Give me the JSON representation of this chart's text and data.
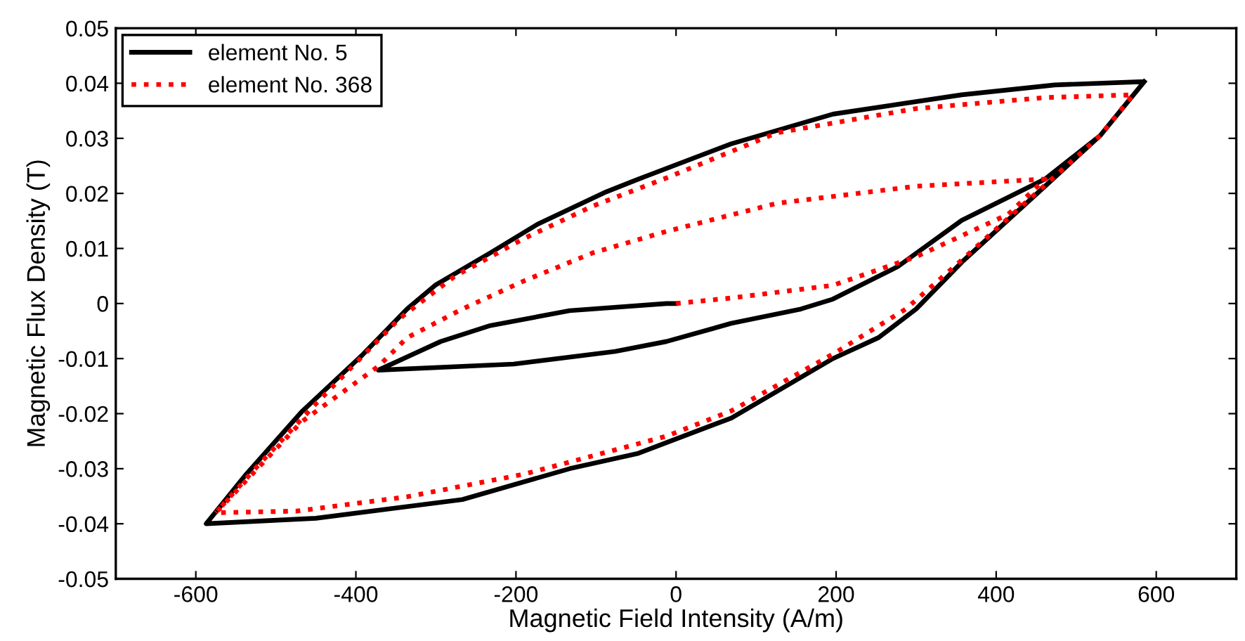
{
  "chart_data": {
    "type": "line",
    "xlabel": "Magnetic Field Intensity (A/m)",
    "ylabel": "Magnetic Flux Density (T)",
    "xlim": [
      -700,
      700
    ],
    "ylim": [
      -0.05,
      0.05
    ],
    "xticks": [
      -600,
      -400,
      -200,
      0,
      200,
      400,
      600
    ],
    "yticks": [
      -0.05,
      -0.04,
      -0.03,
      -0.02,
      -0.01,
      0,
      0.01,
      0.02,
      0.03,
      0.04,
      0.05
    ],
    "grid": false,
    "legend": "top left",
    "marker": "none",
    "series": [
      {
        "name": "element No. 5",
        "color": "#000000",
        "line_style": "solid",
        "x": [
          0,
          -12,
          -133,
          -232,
          -294,
          -372,
          -203,
          -76,
          -12,
          69,
          156,
          196,
          277,
          357,
          461,
          530,
          585,
          473,
          357,
          196,
          69,
          -47,
          -87,
          -173,
          -232,
          -301,
          -336,
          -393,
          -468,
          -537,
          -587,
          -450,
          -267,
          -133,
          -47,
          69,
          196,
          253,
          300,
          357,
          461,
          530,
          585
        ],
        "values": [
          0,
          0,
          -0.0013,
          -0.004,
          -0.0069,
          -0.0121,
          -0.011,
          -0.0087,
          -0.0069,
          -0.0036,
          -0.001,
          0.0008,
          0.0067,
          0.0151,
          0.0226,
          0.0305,
          0.0403,
          0.0397,
          0.0379,
          0.0344,
          0.029,
          0.0226,
          0.0203,
          0.0144,
          0.0092,
          0.0033,
          -0.001,
          -0.0095,
          -0.0197,
          -0.031,
          -0.04,
          -0.039,
          -0.0356,
          -0.03,
          -0.0272,
          -0.0208,
          -0.01,
          -0.0062,
          -0.001,
          0.0075,
          0.0213,
          0.0305,
          0.0403
        ]
      },
      {
        "name": "element No. 368",
        "color": "#ff0000",
        "line_style": "dotted",
        "x": [
          0,
          69,
          196,
          300,
          415,
          461,
          300,
          126,
          -12,
          -104,
          -190,
          -267,
          -336,
          -371,
          -468,
          -575,
          -474,
          -336,
          -190,
          -12,
          69,
          196,
          287,
          357,
          461,
          530,
          571,
          461,
          300,
          126,
          -12,
          -104,
          -190,
          -277,
          -346,
          -450,
          -526,
          -575
        ],
        "values": [
          0,
          0.001,
          0.0033,
          0.0085,
          0.0162,
          0.0226,
          0.0213,
          0.0182,
          0.0131,
          0.0092,
          0.0041,
          -0.001,
          -0.0062,
          -0.0113,
          -0.0215,
          -0.038,
          -0.0377,
          -0.0351,
          -0.031,
          -0.0241,
          -0.0195,
          -0.0092,
          -0.001,
          0.0079,
          0.0215,
          0.0305,
          0.0379,
          0.0374,
          0.0354,
          0.031,
          0.0228,
          0.0177,
          0.0118,
          0.0049,
          -0.0028,
          -0.0182,
          -0.03,
          -0.038
        ]
      }
    ]
  }
}
